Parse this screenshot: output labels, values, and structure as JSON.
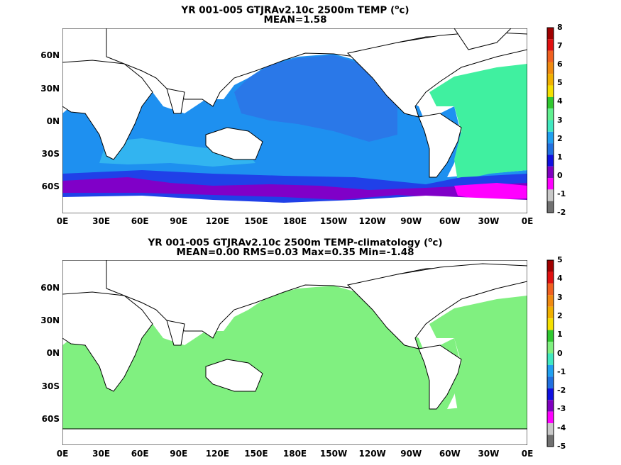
{
  "top_panel": {
    "title_line1_pre": "YR 001-005 GTJRAv2.10c 2500m TEMP (",
    "title_sup": "o",
    "title_line1_post": "c)",
    "title_line2": "MEAN=1.58",
    "colorbar_labels": [
      "8",
      "7",
      "6",
      "5",
      "4",
      "3",
      "2",
      "1",
      "0",
      "-1",
      "-2"
    ],
    "colorbar_colors": [
      "#a00000",
      "#e01010",
      "#f06020",
      "#f08a10",
      "#f0b000",
      "#f5e000",
      "#30c830",
      "#60f090",
      "#40e8c0",
      "#20a0f0",
      "#2070e0",
      "#1010e0",
      "#8000c0",
      "#ff00ff",
      "#c8c8c8",
      "#707070"
    ]
  },
  "bottom_panel": {
    "title_line1_pre": "YR 001-005 GTJRAv2.10c 2500m TEMP-climatology (",
    "title_sup": "o",
    "title_line1_post": "c)",
    "title_line2": "MEAN=0.00   RMS=0.03   Max=0.35   Min=-1.48",
    "colorbar_labels": [
      "5",
      "4",
      "3",
      "2",
      "1",
      "0",
      "-1",
      "-2",
      "-3",
      "-4",
      "-5"
    ],
    "colorbar_colors": [
      "#a00000",
      "#e01010",
      "#f06020",
      "#f08a10",
      "#f0b000",
      "#f5e000",
      "#30c830",
      "#80f080",
      "#40e8c0",
      "#20a0f0",
      "#2070e0",
      "#1010e0",
      "#8000c0",
      "#ff00ff",
      "#c8c8c8",
      "#707070"
    ]
  },
  "lat_labels": [
    "60N",
    "30N",
    "0N",
    "30S",
    "60S"
  ],
  "lon_labels": [
    "0E",
    "30E",
    "60E",
    "90E",
    "120E",
    "150E",
    "180E",
    "150W",
    "120W",
    "90W",
    "60W",
    "30W",
    "0E"
  ],
  "colors": {
    "top_ocean": "#1e90f0",
    "top_ocean_light": "#32b4f0",
    "top_pacific": "#2a78e8",
    "top_atlantic": "#40f0a0",
    "top_south": "#2040e8",
    "top_south_deep": "#8000c8",
    "bottom_ocean": "#80f080",
    "bottom_anom": "#40e8c0",
    "land": "#ffffff"
  }
}
